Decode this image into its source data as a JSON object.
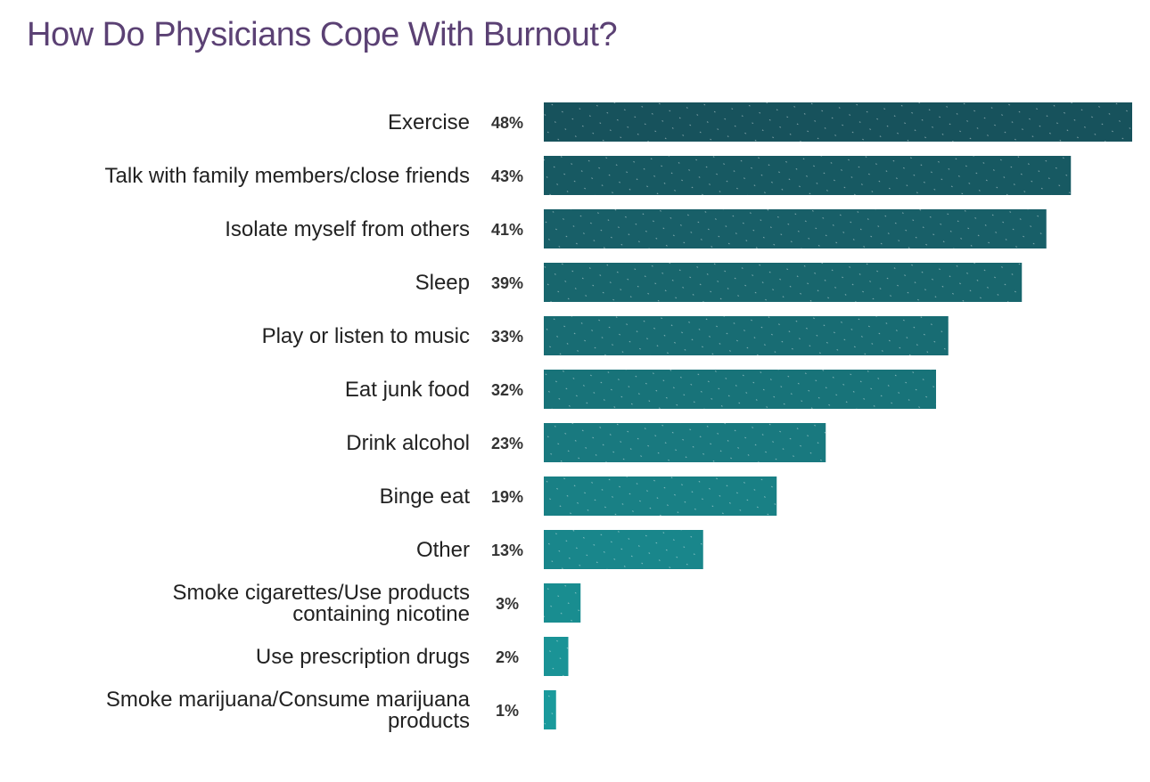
{
  "colors": {
    "title": "#5b4174",
    "bar_top": "#17525c",
    "bar_bottom": "#1a9a9c",
    "label": "#222222",
    "value": "#333333"
  },
  "chart_data": {
    "type": "bar",
    "orientation": "horizontal",
    "title": "How Do Physicians Cope With Burnout?",
    "xlabel": "",
    "ylabel": "",
    "xlim": [
      0,
      48
    ],
    "grid": false,
    "legend": "none",
    "categories": [
      "Exercise",
      "Talk with family members/close friends",
      "Isolate myself from others",
      "Sleep",
      "Play or listen to music",
      "Eat junk food",
      "Drink alcohol",
      "Binge eat",
      "Other",
      "Smoke cigarettes/Use products containing nicotine",
      "Use prescription drugs",
      "Smoke marijuana/Consume marijuana products"
    ],
    "category_lines": [
      [
        "Exercise"
      ],
      [
        "Talk with family members/close friends"
      ],
      [
        "Isolate myself from others"
      ],
      [
        "Sleep"
      ],
      [
        "Play or listen to music"
      ],
      [
        "Eat junk food"
      ],
      [
        "Drink alcohol"
      ],
      [
        "Binge eat"
      ],
      [
        "Other"
      ],
      [
        "Smoke cigarettes/Use products",
        "containing nicotine"
      ],
      [
        "Use prescription drugs"
      ],
      [
        "Smoke marijuana/Consume marijuana",
        "products"
      ]
    ],
    "values": [
      48,
      43,
      41,
      39,
      33,
      32,
      23,
      19,
      13,
      3,
      2,
      1
    ],
    "value_labels": [
      "48%",
      "43%",
      "41%",
      "39%",
      "33%",
      "32%",
      "23%",
      "19%",
      "13%",
      "3%",
      "2%",
      "1%"
    ]
  }
}
